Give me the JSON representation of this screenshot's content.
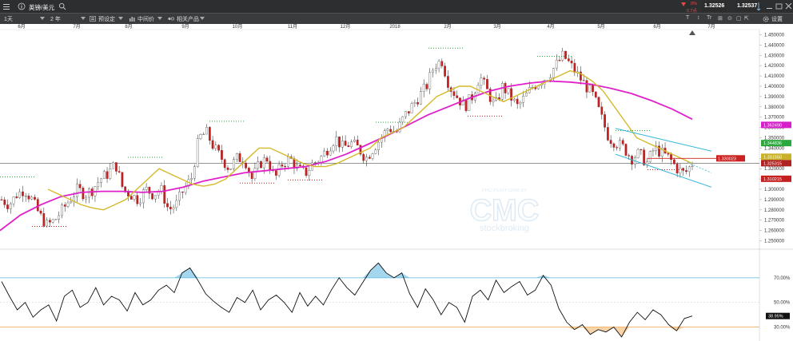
{
  "header": {
    "symbol": "英镑/美元",
    "interval": "1天",
    "range": "2 年",
    "presets": "预设定",
    "price_type": "中间价",
    "related": "相关产品",
    "change_pct": "0%",
    "change_abs": "0.7点",
    "bid": "1.32526",
    "ask": "1.32537",
    "settings": "设置",
    "tool_labels": [
      "T",
      "↕",
      "Tr",
      "⊞",
      "⊙",
      "▢",
      "⇱",
      "⋯"
    ]
  },
  "watermark": {
    "line1": "PRO PLATFORM BY",
    "line2": "CMC",
    "line3": "stockbroking"
  },
  "colors": {
    "ma_short": "#d4b92a",
    "ma_long": "#e020c8",
    "channel": "#38b6d8",
    "rsi_upper": "#5ab7e0",
    "rsi_lower": "#f0b060"
  },
  "chart_data": [
    {
      "type": "candlestick",
      "title": "英镑/美元",
      "x_month_labels": [
        "6月",
        "7月",
        "8月",
        "9月",
        "10月",
        "11月",
        "12月",
        "2018",
        "2月",
        "3月",
        "4月",
        "5月",
        "6月",
        "7月"
      ],
      "y_ticks": [
        "1.450000",
        "1.440000",
        "1.430000",
        "1.420000",
        "1.410000",
        "1.400000",
        "1.390000",
        "1.380000",
        "1.370000",
        "1.360000",
        "1.350000",
        "1.340000",
        "1.330000",
        "1.320000",
        "1.310000",
        "1.300000",
        "1.290000",
        "1.280000",
        "1.270000",
        "1.260000",
        "1.250000"
      ],
      "ylim": [
        1.245,
        1.455
      ],
      "close_path": [
        1.29,
        1.285,
        1.295,
        1.3,
        1.29,
        1.275,
        1.265,
        1.27,
        1.28,
        1.29,
        1.3,
        1.295,
        1.3,
        1.31,
        1.315,
        1.325,
        1.3,
        1.295,
        1.29,
        1.3,
        1.295,
        1.3,
        1.28,
        1.285,
        1.3,
        1.31,
        1.35,
        1.355,
        1.34,
        1.33,
        1.32,
        1.33,
        1.33,
        1.31,
        1.325,
        1.33,
        1.31,
        1.325,
        1.33,
        1.32,
        1.315,
        1.325,
        1.33,
        1.34,
        1.35,
        1.34,
        1.345,
        1.34,
        1.33,
        1.34,
        1.35,
        1.36,
        1.355,
        1.37,
        1.38,
        1.39,
        1.4,
        1.42,
        1.425,
        1.4,
        1.39,
        1.38,
        1.39,
        1.41,
        1.395,
        1.38,
        1.4,
        1.39,
        1.38,
        1.39,
        1.4,
        1.405,
        1.41,
        1.42,
        1.43,
        1.42,
        1.41,
        1.4,
        1.39,
        1.37,
        1.35,
        1.345,
        1.34,
        1.33,
        1.335,
        1.325,
        1.34,
        1.335,
        1.33,
        1.32,
        1.315,
        1.325
      ],
      "ma_short_path": [
        1.3,
        1.295,
        1.29,
        1.285,
        1.282,
        1.28,
        1.285,
        1.29,
        1.3,
        1.31,
        1.32,
        1.315,
        1.31,
        1.305,
        1.303,
        1.305,
        1.31,
        1.32,
        1.33,
        1.34,
        1.34,
        1.335,
        1.33,
        1.325,
        1.322,
        1.322,
        1.325,
        1.33,
        1.335,
        1.34,
        1.35,
        1.355,
        1.36,
        1.37,
        1.38,
        1.39,
        1.395,
        1.4,
        1.4,
        1.395,
        1.39,
        1.385,
        1.39,
        1.395,
        1.4,
        1.405,
        1.41,
        1.415,
        1.412,
        1.405,
        1.395,
        1.38,
        1.365,
        1.35,
        1.345,
        1.34,
        1.335,
        1.33,
        1.325
      ],
      "ma_long_path": [
        1.26,
        1.275,
        1.285,
        1.293,
        1.297,
        1.298,
        1.298,
        1.297,
        1.298,
        1.302,
        1.308,
        1.312,
        1.316,
        1.318,
        1.32,
        1.322,
        1.327,
        1.334,
        1.343,
        1.352,
        1.362,
        1.372,
        1.38,
        1.388,
        1.395,
        1.4,
        1.403,
        1.405,
        1.404,
        1.402,
        1.398,
        1.393,
        1.386,
        1.378,
        1.368
      ],
      "price_tags": [
        {
          "label": "1.362490",
          "color": "#d61ecb"
        },
        {
          "label": "1.344836",
          "color": "#2aa83c"
        },
        {
          "label": "1.331550",
          "color": "#c9b22a"
        },
        {
          "label": "1.325315",
          "color": "#b02222"
        },
        {
          "label": "1.330023",
          "color": "#cc2222"
        },
        {
          "label": "1.310215",
          "color": "#c42020"
        }
      ],
      "current_price": 1.325315
    },
    {
      "type": "line",
      "title": "RSI",
      "y_ticks": [
        "70.00%",
        "50.00%",
        "30.00%"
      ],
      "ylim": [
        20,
        90
      ],
      "upper_band": 70,
      "lower_band": 30,
      "last_value_label": "38.95%",
      "values": [
        67,
        55,
        44,
        50,
        38,
        44,
        48,
        35,
        55,
        60,
        46,
        50,
        62,
        48,
        55,
        52,
        43,
        58,
        48,
        52,
        60,
        64,
        58,
        74,
        78,
        68,
        57,
        51,
        46,
        42,
        54,
        50,
        60,
        44,
        52,
        56,
        50,
        42,
        58,
        47,
        55,
        48,
        60,
        70,
        62,
        56,
        66,
        76,
        82,
        74,
        70,
        74,
        57,
        46,
        61,
        52,
        40,
        50,
        46,
        34,
        55,
        60,
        52,
        68,
        58,
        63,
        67,
        56,
        60,
        72,
        64,
        45,
        34,
        28,
        32,
        24,
        28,
        26,
        30,
        22,
        34,
        42,
        36,
        44,
        40,
        32,
        27,
        37,
        39
      ]
    }
  ]
}
